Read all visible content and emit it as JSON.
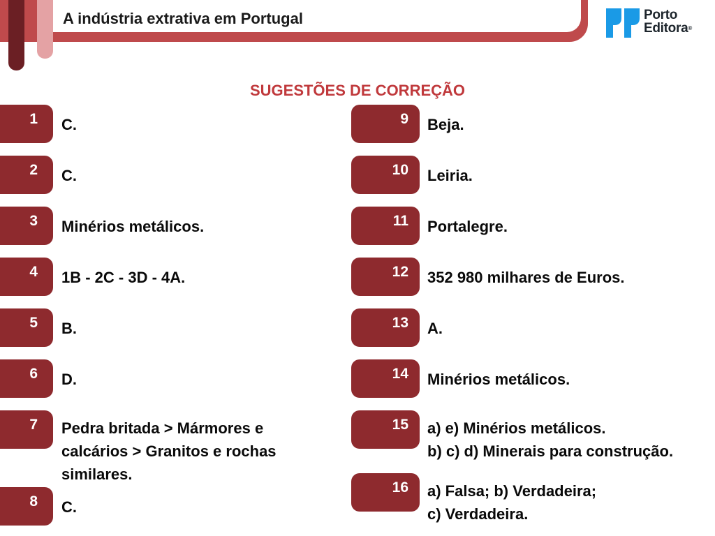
{
  "header": {
    "title": "A indústria extrativa em Portugal",
    "logo_line1": "Porto",
    "logo_line2": "Editora",
    "logo_reg": "®"
  },
  "heading": "SUGESTÕES DE CORREÇÃO",
  "colors": {
    "header_band": "#bf4a4c",
    "badge": "#8e2a2e",
    "heading": "#c0393c",
    "logo_blue": "#1a9ae6"
  },
  "answers": [
    {
      "num": "1",
      "lines": [
        "C."
      ]
    },
    {
      "num": "2",
      "lines": [
        "C."
      ]
    },
    {
      "num": "3",
      "lines": [
        "Minérios metálicos."
      ]
    },
    {
      "num": "4",
      "lines": [
        "1B - 2C - 3D - 4A."
      ]
    },
    {
      "num": "5",
      "lines": [
        "B."
      ]
    },
    {
      "num": "6",
      "lines": [
        "D."
      ]
    },
    {
      "num": "7",
      "lines": [
        "Pedra britada > Mármores e",
        "calcários > Granitos e rochas",
        "similares."
      ]
    },
    {
      "num": "8",
      "lines": [
        "C."
      ]
    },
    {
      "num": "9",
      "lines": [
        "Beja."
      ]
    },
    {
      "num": "10",
      "lines": [
        "Leiria."
      ]
    },
    {
      "num": "11",
      "lines": [
        "Portalegre."
      ]
    },
    {
      "num": "12",
      "lines": [
        "352 980 milhares de Euros."
      ]
    },
    {
      "num": "13",
      "lines": [
        "A."
      ]
    },
    {
      "num": "14",
      "lines": [
        "Minérios metálicos."
      ]
    },
    {
      "num": "15",
      "lines": [
        "a) e) Minérios metálicos.",
        "b) c) d) Minerais para construção."
      ]
    },
    {
      "num": "16",
      "lines": [
        "a) Falsa; b) Verdadeira;",
        "c) Verdadeira."
      ]
    }
  ]
}
